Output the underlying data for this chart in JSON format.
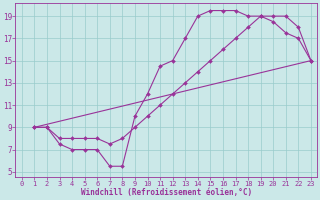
{
  "bg_color": "#cbe8e8",
  "line_color": "#993399",
  "grid_color": "#99cccc",
  "xlabel": "Windchill (Refroidissement éolien,°C)",
  "xlim": [
    -0.5,
    23.5
  ],
  "ylim": [
    4.5,
    20.2
  ],
  "xticks": [
    0,
    1,
    2,
    3,
    4,
    5,
    6,
    7,
    8,
    9,
    10,
    11,
    12,
    13,
    14,
    15,
    16,
    17,
    18,
    19,
    20,
    21,
    22,
    23
  ],
  "yticks": [
    5,
    7,
    9,
    11,
    13,
    15,
    17,
    19
  ],
  "series1_x": [
    1,
    2,
    3,
    4,
    5,
    6,
    7,
    8,
    9,
    10,
    11,
    12,
    13,
    14,
    15,
    16,
    17,
    18,
    19,
    20,
    21,
    22,
    23
  ],
  "series1_y": [
    9,
    9,
    7.5,
    7,
    7,
    7,
    5.5,
    5.5,
    10,
    12,
    14.5,
    15,
    17,
    19,
    19.5,
    19.5,
    19.5,
    19,
    19,
    18.5,
    17.5,
    17,
    15
  ],
  "series2_x": [
    1,
    2,
    3,
    4,
    5,
    6,
    7,
    8,
    9,
    10,
    11,
    12,
    13,
    14,
    15,
    16,
    17,
    18,
    19,
    20,
    21,
    22,
    23
  ],
  "series2_y": [
    9,
    9,
    8,
    8,
    8,
    8,
    7.5,
    8,
    9,
    10,
    11,
    12,
    13,
    14,
    15,
    16,
    17,
    18,
    19,
    19,
    19,
    18,
    15
  ],
  "series3_x": [
    1,
    23
  ],
  "series3_y": [
    9,
    15
  ]
}
